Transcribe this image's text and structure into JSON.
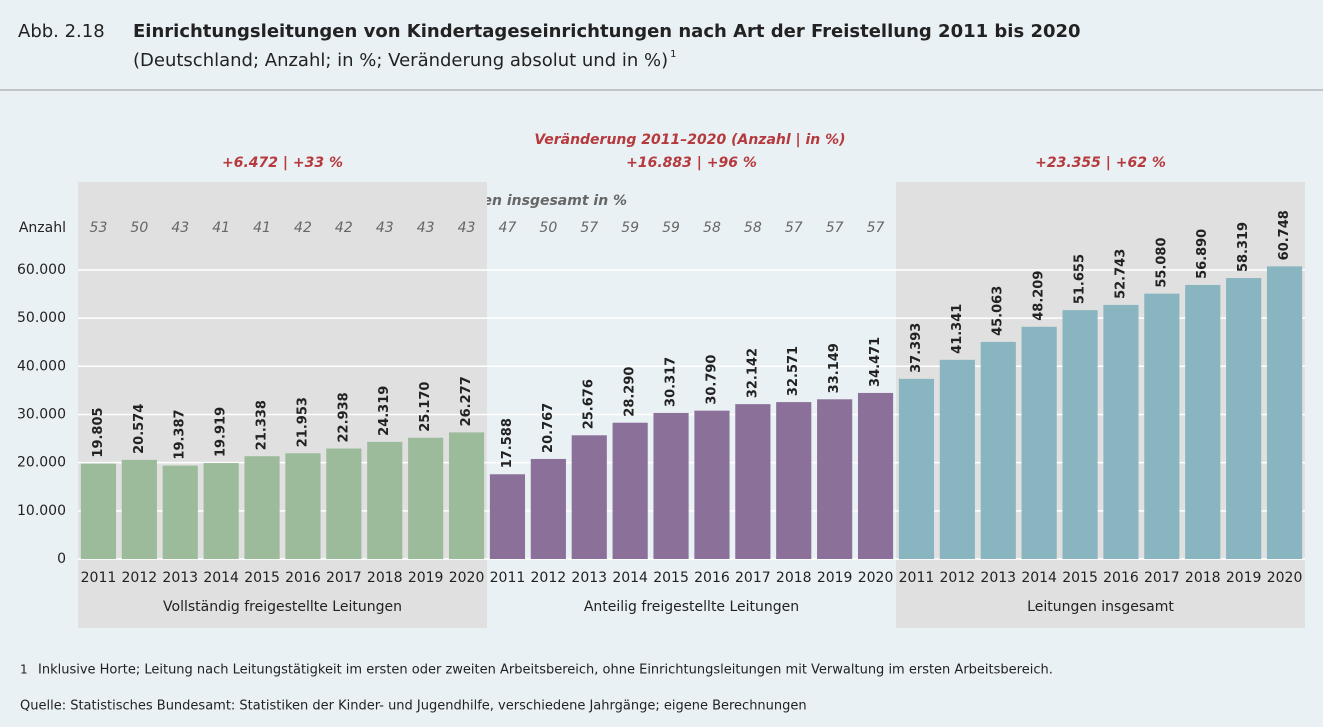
{
  "chart_data": {
    "type": "bar",
    "figure_label": "Abb. 2.18",
    "title": "Einrichtungsleitungen von Kindertageseinrichtungen nach Art der Freistellung 2011 bis 2020",
    "subtitle": "(Deutschland; Anzahl; in %; Veränderung absolut und in %)",
    "footnote_mark": "1",
    "y_label": "Anzahl",
    "share_label": "Anteil an Leitungen insgesamt in %",
    "change_title": "Veränderung 2011–2020 (Anzahl | in %)",
    "categories": [
      "2011",
      "2012",
      "2013",
      "2014",
      "2015",
      "2016",
      "2017",
      "2018",
      "2019",
      "2020"
    ],
    "ylim": [
      0,
      63000
    ],
    "yticks": [
      0,
      {
        "value": 10000,
        "label": "10.000"
      },
      {
        "value": 20000,
        "label": "20.000"
      },
      {
        "value": 30000,
        "label": "30.000"
      },
      {
        "value": 40000,
        "label": "40.000"
      },
      {
        "value": 50000,
        "label": "50.000"
      },
      {
        "value": 60000,
        "label": "60.000"
      }
    ],
    "grid": true,
    "series": [
      {
        "name": "Vollständig freigestellte Leitungen",
        "color": "#9bbb9b",
        "values": [
          19805,
          20574,
          19387,
          19919,
          21338,
          21953,
          22938,
          24319,
          25170,
          26277
        ],
        "value_labels": [
          "19.805",
          "20.574",
          "19.387",
          "19.919",
          "21.338",
          "21.953",
          "22.938",
          "24.319",
          "25.170",
          "26.277"
        ],
        "shares": [
          53,
          50,
          43,
          41,
          41,
          42,
          42,
          43,
          43,
          43
        ],
        "change": "+6.472 | +33 %"
      },
      {
        "name": "Anteilig freigestellte Leitungen",
        "color": "#8b7099",
        "values": [
          17588,
          20767,
          25676,
          28290,
          30317,
          30790,
          32142,
          32571,
          33149,
          34471
        ],
        "value_labels": [
          "17.588",
          "20.767",
          "25.676",
          "28.290",
          "30.317",
          "30.790",
          "32.142",
          "32.571",
          "33.149",
          "34.471"
        ],
        "shares": [
          47,
          50,
          57,
          59,
          59,
          58,
          58,
          57,
          57,
          57
        ],
        "change": "+16.883 | +96 %"
      },
      {
        "name": "Leitungen insgesamt",
        "color": "#89b5c0",
        "values": [
          37393,
          41341,
          45063,
          48209,
          51655,
          52743,
          55080,
          56890,
          58319,
          60748
        ],
        "value_labels": [
          "37.393",
          "41.341",
          "45.063",
          "48.209",
          "51.655",
          "52.743",
          "55.080",
          "56.890",
          "58.319",
          "60.748"
        ],
        "change": "+23.355 | +62 %"
      }
    ],
    "footnote": "Inklusive Horte; Leitung nach Leitungstätigkeit im ersten oder zweiten Arbeitsbereich, ohne Einrichtungsleitungen mit Verwaltung im ersten Arbeitsbereich.",
    "source": "Quelle: Statistisches Bundesamt: Statistiken der Kinder- und Jugendhilfe, verschiedene Jahrgänge; eigene Berechnungen"
  }
}
